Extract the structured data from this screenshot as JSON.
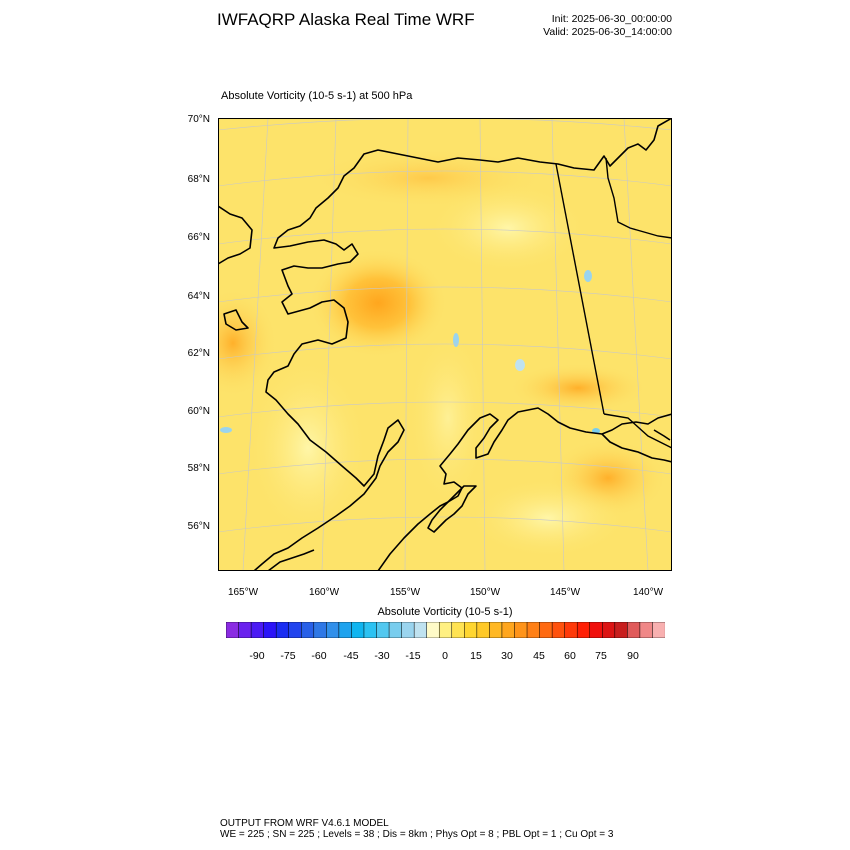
{
  "header": {
    "title": "IWFAQRP Alaska Real Time WRF",
    "init": "Init: 2025-06-30_00:00:00",
    "valid": "Valid: 2025-06-30_14:00:00"
  },
  "field": {
    "name": "Absolute Vorticity",
    "units": "(10-5 s-1)",
    "level": "at   500 hPa",
    "label": "Absolute Vorticity   (10-5 s-1)     at   500 hPa"
  },
  "map": {
    "lat_labels": [
      "70°N",
      "68°N",
      "66°N",
      "64°N",
      "62°N",
      "60°N",
      "58°N",
      "56°N"
    ],
    "lon_labels": [
      "165°W",
      "160°W",
      "155°W",
      "150°W",
      "145°W",
      "140°W"
    ],
    "background_color": "#fde36a",
    "coast_color": "#000000",
    "grid_color": "#c8c8c8"
  },
  "colorbar": {
    "title": "Absolute Vorticity  (10-5 s-1)",
    "tick_labels": [
      "-90",
      "-75",
      "-60",
      "-45",
      "-30",
      "-15",
      "0",
      "15",
      "30",
      "45",
      "60",
      "75",
      "90"
    ],
    "colors": [
      "#8a2be2",
      "#6a22ee",
      "#4b1af4",
      "#2b14f8",
      "#1a2df2",
      "#2244ee",
      "#2860e8",
      "#2f78e6",
      "#3290ea",
      "#1fa3ee",
      "#10b5f0",
      "#2cc2f2",
      "#52c8f0",
      "#78cdee",
      "#9ad4ee",
      "#bfe2f0",
      "#fffbc8",
      "#fff082",
      "#ffe352",
      "#ffd630",
      "#ffc928",
      "#ffb824",
      "#ffa61e",
      "#ff941a",
      "#ff8016",
      "#ff6a12",
      "#ff520e",
      "#ff3a0a",
      "#ff2006",
      "#f0100c",
      "#dc1414",
      "#c81e1e",
      "#e05a5a",
      "#f08888",
      "#f8b0b0"
    ]
  },
  "footer": {
    "line1": "OUTPUT FROM WRF V4.6.1 MODEL",
    "line2": "WE = 225 ; SN = 225 ; Levels = 38 ; Dis = 8km ; Phys Opt = 8 ; PBL Opt = 1 ; Cu Opt = 3"
  }
}
